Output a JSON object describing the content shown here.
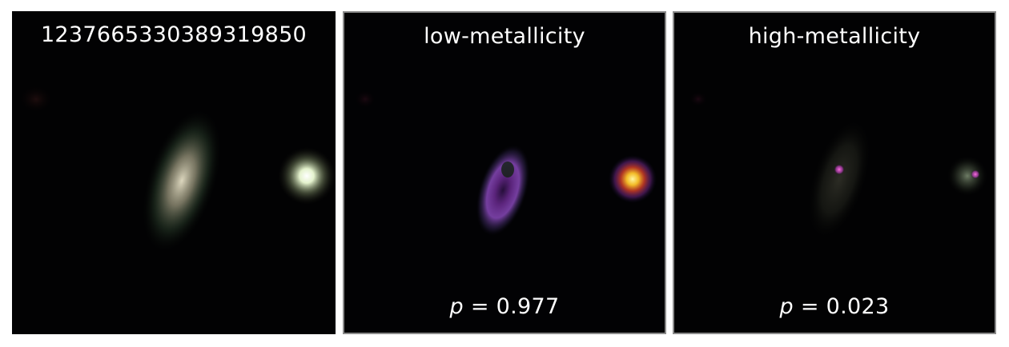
{
  "panels": [
    {
      "id": "original",
      "title": "1237665330389319850",
      "colors": {
        "galaxy_core": "#e6e0c6",
        "galaxy_halo": "#3a5a3a",
        "star": "#f4ffe0"
      }
    },
    {
      "id": "low",
      "title": "low-metallicity",
      "p_symbol": "p",
      "p_rest": " = 0.977",
      "colors": {
        "ring": "#9a4fd0",
        "hot_core": "#ffd23a",
        "glow": "#c04040"
      }
    },
    {
      "id": "high",
      "title": "high-metallicity",
      "p_symbol": "p",
      "p_rest": " = 0.023",
      "colors": {
        "spot": "#e050c0",
        "haze": "#2a2a22"
      }
    }
  ]
}
